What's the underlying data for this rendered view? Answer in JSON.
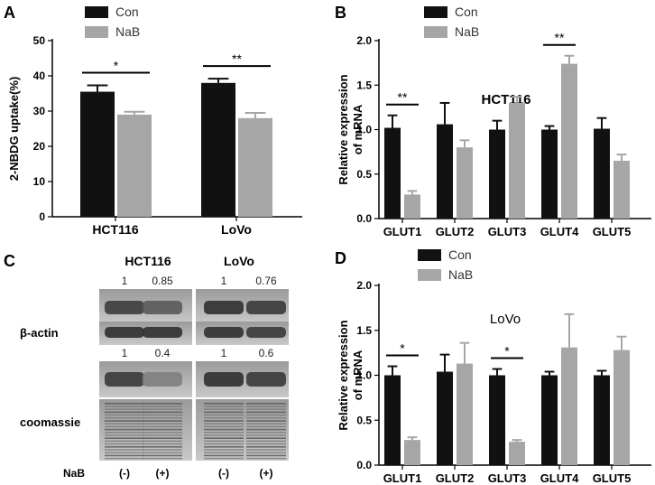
{
  "colors": {
    "con": "#111111",
    "nab": "#a6a6a6",
    "axis": "#000000"
  },
  "legend": {
    "con": "Con",
    "nab": "NaB"
  },
  "chart_data": [
    {
      "panel_letter": "A",
      "type": "bar",
      "ylabel": "2-NBDG uptake(%)",
      "ylim": [
        0,
        50
      ],
      "yticks": [
        "0",
        "10",
        "20",
        "30",
        "40",
        "50"
      ],
      "categories": [
        "HCT116",
        "LoVo"
      ],
      "series": [
        {
          "name": "Con",
          "values": [
            35.5,
            38
          ],
          "errors": [
            1.8,
            1.2
          ]
        },
        {
          "name": "NaB",
          "values": [
            29,
            28
          ],
          "errors": [
            0.8,
            1.5
          ]
        }
      ],
      "significance": [
        "*",
        "**"
      ],
      "legend_position": "top-left"
    },
    {
      "panel_letter": "B",
      "type": "bar",
      "title": "HCT116",
      "ylabel": "Relative expression of mRNA",
      "ylabel_lines": [
        "Relative expression",
        "of mRNA"
      ],
      "ylim": [
        0,
        2.0
      ],
      "yticks": [
        "0.0",
        "0.5",
        "1.0",
        "1.5",
        "2.0"
      ],
      "categories": [
        "GLUT1",
        "GLUT2",
        "GLUT3",
        "GLUT4",
        "GLUT5"
      ],
      "series": [
        {
          "name": "Con",
          "values": [
            1.02,
            1.06,
            1.0,
            1.0,
            1.01
          ],
          "errors": [
            0.14,
            0.24,
            0.1,
            0.04,
            0.12
          ]
        },
        {
          "name": "NaB",
          "values": [
            0.27,
            0.8,
            1.3,
            1.74,
            0.65
          ],
          "errors": [
            0.04,
            0.08,
            0.07,
            0.09,
            0.07
          ]
        }
      ],
      "significance": [
        "**",
        "",
        "",
        "**",
        ""
      ],
      "legend_position": "top-left"
    },
    {
      "panel_letter": "D",
      "type": "bar",
      "title": "LoVo",
      "ylabel": "Relative expression of mRNA",
      "ylabel_lines": [
        "Relative expression",
        "of mRNA"
      ],
      "ylim": [
        0,
        2.0
      ],
      "yticks": [
        "0.0",
        "0.5",
        "1.0",
        "1.5",
        "2.0"
      ],
      "categories": [
        "GLUT1",
        "GLUT2",
        "GLUT3",
        "GLUT4",
        "GLUT5"
      ],
      "series": [
        {
          "name": "Con",
          "values": [
            1.0,
            1.04,
            1.0,
            1.0,
            1.0
          ],
          "errors": [
            0.1,
            0.19,
            0.07,
            0.04,
            0.05
          ]
        },
        {
          "name": "NaB",
          "values": [
            0.28,
            1.13,
            0.26,
            1.31,
            1.28
          ],
          "errors": [
            0.03,
            0.23,
            0.02,
            0.37,
            0.15
          ]
        }
      ],
      "significance": [
        "*",
        "",
        "*",
        "",
        ""
      ],
      "legend_position": "top-left"
    }
  ],
  "blot": {
    "panel_letter": "C",
    "cell_lines": [
      "HCT116",
      "LoVo"
    ],
    "top_values": [
      [
        "1",
        "0.85"
      ],
      [
        "1",
        "0.76"
      ]
    ],
    "bottom_values": [
      [
        "1",
        "0.4"
      ],
      [
        "1",
        "0.6"
      ]
    ],
    "labels": {
      "beta_actin": "β-actin",
      "coomassie": "coomassie"
    },
    "nab_label": "NaB",
    "lanes": [
      "(-)",
      "(+)",
      "(-)",
      "(+)"
    ]
  }
}
